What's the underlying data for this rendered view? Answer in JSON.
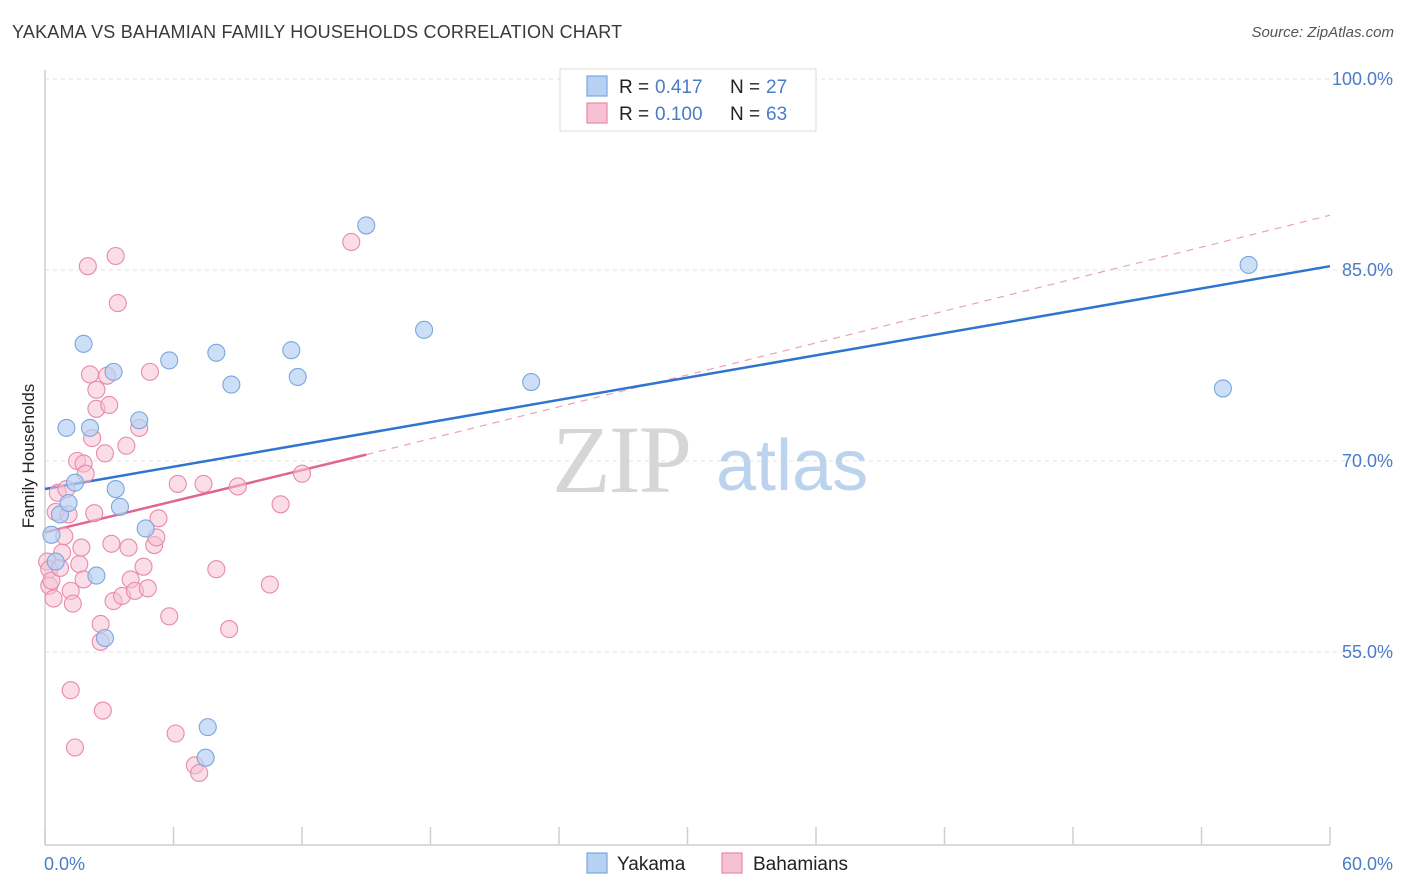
{
  "header": {
    "title": "YAKAMA VS BAHAMIAN FAMILY HOUSEHOLDS CORRELATION CHART",
    "source": "Source: ZipAtlas.com"
  },
  "watermark": {
    "zip": "ZIP",
    "atlas": "atlas"
  },
  "colors": {
    "yakama_fill": "#b7d1f3",
    "yakama_stroke": "#7aa6dd",
    "yakama_line": "#2f74cf",
    "bahamian_fill": "#f6c1d2",
    "bahamian_stroke": "#e88aa9",
    "bahamian_line": "#e06690",
    "tick_text": "#4a7cc7",
    "grid": "#e2e2e2"
  },
  "legend": {
    "rows": [
      {
        "r_label": "R =",
        "r_value": "0.417",
        "n_label": "N =",
        "n_value": "27"
      },
      {
        "r_label": "R =",
        "r_value": "0.100",
        "n_label": "N =",
        "n_value": "63"
      }
    ]
  },
  "bottom_legend": {
    "items": [
      "Yakama",
      "Bahamians"
    ]
  },
  "chart_data": {
    "type": "scatter",
    "title": "YAKAMA VS BAHAMIAN FAMILY HOUSEHOLDS CORRELATION CHART",
    "xlabel": "",
    "ylabel": "Family Households",
    "xlim": [
      0,
      60
    ],
    "ylim": [
      40,
      102
    ],
    "x_tick_labels": [
      "0.0%",
      "60.0%"
    ],
    "y_ticks": [
      55,
      70,
      85,
      100
    ],
    "y_tick_labels": [
      "55.0%",
      "70.0%",
      "85.0%",
      "100.0%"
    ],
    "grid": true,
    "legend_position": "top-center",
    "series": [
      {
        "name": "Yakama",
        "r": 0.417,
        "n": 27,
        "trend": {
          "x": [
            0,
            60
          ],
          "y": [
            67.8,
            85.3
          ],
          "style": "solid"
        },
        "points": [
          [
            0.3,
            64.2
          ],
          [
            0.5,
            62.1
          ],
          [
            0.7,
            65.8
          ],
          [
            1.0,
            72.6
          ],
          [
            1.1,
            66.7
          ],
          [
            1.4,
            68.3
          ],
          [
            1.8,
            79.2
          ],
          [
            2.1,
            72.6
          ],
          [
            2.4,
            61.0
          ],
          [
            2.8,
            56.1
          ],
          [
            3.2,
            77.0
          ],
          [
            3.3,
            67.8
          ],
          [
            3.5,
            66.4
          ],
          [
            4.4,
            73.2
          ],
          [
            4.7,
            64.7
          ],
          [
            5.8,
            77.9
          ],
          [
            7.5,
            46.7
          ],
          [
            7.6,
            49.1
          ],
          [
            8.0,
            78.5
          ],
          [
            8.7,
            76.0
          ],
          [
            11.5,
            78.7
          ],
          [
            11.8,
            76.6
          ],
          [
            15.0,
            88.5
          ],
          [
            17.7,
            80.3
          ],
          [
            22.7,
            76.2
          ],
          [
            55.0,
            75.7
          ],
          [
            56.2,
            85.4
          ]
        ]
      },
      {
        "name": "Bahamians",
        "r": 0.1,
        "n": 63,
        "trend": {
          "x": [
            0,
            15
          ],
          "y": [
            64.4,
            70.5
          ],
          "style": "solid",
          "extension": {
            "x": [
              15,
              60
            ],
            "y": [
              70.5,
              89.3
            ],
            "style": "dashed"
          }
        },
        "points": [
          [
            0.1,
            62.1
          ],
          [
            0.2,
            60.2
          ],
          [
            0.2,
            61.5
          ],
          [
            0.3,
            60.6
          ],
          [
            0.4,
            59.2
          ],
          [
            0.5,
            66.0
          ],
          [
            0.6,
            67.5
          ],
          [
            0.7,
            61.6
          ],
          [
            0.8,
            62.8
          ],
          [
            0.9,
            64.1
          ],
          [
            1.0,
            67.8
          ],
          [
            1.1,
            65.8
          ],
          [
            1.2,
            59.8
          ],
          [
            1.2,
            52.0
          ],
          [
            1.3,
            58.8
          ],
          [
            1.4,
            47.5
          ],
          [
            1.5,
            70.0
          ],
          [
            1.6,
            61.9
          ],
          [
            1.7,
            63.2
          ],
          [
            1.8,
            60.7
          ],
          [
            1.8,
            69.8
          ],
          [
            1.9,
            69.0
          ],
          [
            2.0,
            85.3
          ],
          [
            2.1,
            76.8
          ],
          [
            2.2,
            71.8
          ],
          [
            2.3,
            65.9
          ],
          [
            2.4,
            75.6
          ],
          [
            2.4,
            74.1
          ],
          [
            2.6,
            57.2
          ],
          [
            2.6,
            55.8
          ],
          [
            2.7,
            50.4
          ],
          [
            2.8,
            70.6
          ],
          [
            2.9,
            76.7
          ],
          [
            3.0,
            74.4
          ],
          [
            3.1,
            63.5
          ],
          [
            3.2,
            59.0
          ],
          [
            3.3,
            86.1
          ],
          [
            3.4,
            82.4
          ],
          [
            3.6,
            59.4
          ],
          [
            3.8,
            71.2
          ],
          [
            3.9,
            63.2
          ],
          [
            4.0,
            60.7
          ],
          [
            4.2,
            59.8
          ],
          [
            4.4,
            72.6
          ],
          [
            4.6,
            61.7
          ],
          [
            4.8,
            60.0
          ],
          [
            4.9,
            77.0
          ],
          [
            5.1,
            63.4
          ],
          [
            5.2,
            64.0
          ],
          [
            5.3,
            65.5
          ],
          [
            5.8,
            57.8
          ],
          [
            6.1,
            48.6
          ],
          [
            6.2,
            68.2
          ],
          [
            7.0,
            46.1
          ],
          [
            7.2,
            45.5
          ],
          [
            7.4,
            68.2
          ],
          [
            8.0,
            61.5
          ],
          [
            8.6,
            56.8
          ],
          [
            9.0,
            68.0
          ],
          [
            10.5,
            60.3
          ],
          [
            11.0,
            66.6
          ],
          [
            12.0,
            69.0
          ],
          [
            14.3,
            87.2
          ]
        ]
      }
    ]
  }
}
